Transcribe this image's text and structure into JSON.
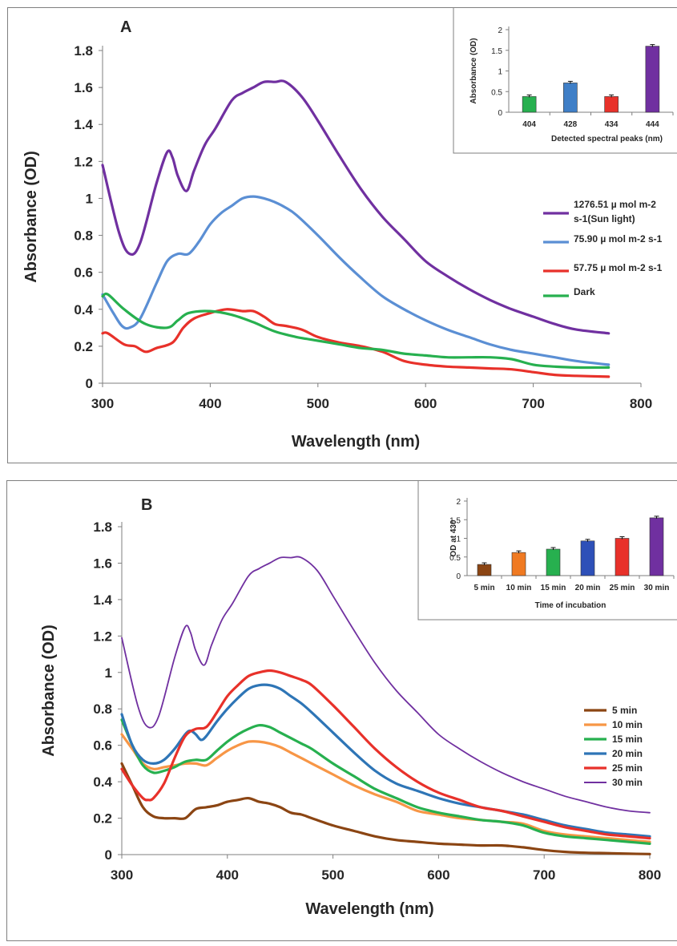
{
  "panels": [
    {
      "label": "A",
      "main": {
        "type": "line",
        "xlabel": "Wavelength (nm)",
        "ylabel": "Absorbance (OD)",
        "xlim": [
          300,
          800
        ],
        "ylim": [
          0,
          1.8
        ],
        "xticks": [
          "300",
          "400",
          "500",
          "600",
          "700",
          "800"
        ],
        "yticks": [
          "0",
          "0.2",
          "0.4",
          "0.6",
          "0.8",
          "1",
          "1.2",
          "1.4",
          "1.6",
          "1.8"
        ],
        "grid": false,
        "legend_position": "right",
        "series": [
          {
            "name": "1276.51 µ mol m-2 s-1(Sun light)",
            "color": "#7030a0",
            "x": [
              300,
              315,
              325,
              335,
              350,
              360,
              365,
              370,
              378,
              385,
              395,
              405,
              420,
              430,
              440,
              450,
              460,
              470,
              485,
              500,
              520,
              540,
              560,
              580,
              600,
              620,
              640,
              660,
              680,
              700,
              720,
              740,
              770
            ],
            "y": [
              1.18,
              0.82,
              0.7,
              0.76,
              1.08,
              1.25,
              1.22,
              1.12,
              1.04,
              1.15,
              1.29,
              1.38,
              1.53,
              1.57,
              1.6,
              1.63,
              1.63,
              1.63,
              1.55,
              1.42,
              1.23,
              1.05,
              0.9,
              0.78,
              0.66,
              0.58,
              0.51,
              0.45,
              0.4,
              0.36,
              0.32,
              0.29,
              0.27
            ]
          },
          {
            "name": "75.90 µ mol m-2 s-1",
            "color": "#5b8fd4",
            "x": [
              300,
              310,
              318,
              325,
              335,
              350,
              360,
              370,
              380,
              390,
              400,
              410,
              420,
              430,
              440,
              450,
              460,
              470,
              480,
              500,
              520,
              540,
              560,
              580,
              600,
              620,
              640,
              660,
              680,
              700,
              720,
              740,
              770
            ],
            "y": [
              0.48,
              0.38,
              0.31,
              0.3,
              0.35,
              0.54,
              0.66,
              0.7,
              0.7,
              0.77,
              0.86,
              0.92,
              0.96,
              1.0,
              1.01,
              1.0,
              0.98,
              0.95,
              0.91,
              0.8,
              0.68,
              0.57,
              0.47,
              0.4,
              0.34,
              0.29,
              0.25,
              0.21,
              0.18,
              0.16,
              0.14,
              0.12,
              0.1
            ]
          },
          {
            "name": "57.75 µ mol m-2 s-1",
            "color": "#e8312a",
            "x": [
              300,
              305,
              320,
              330,
              340,
              350,
              365,
              375,
              385,
              400,
              415,
              430,
              440,
              450,
              460,
              470,
              485,
              500,
              520,
              540,
              560,
              580,
              600,
              620,
              640,
              660,
              680,
              700,
              720,
              740,
              770
            ],
            "y": [
              0.27,
              0.27,
              0.21,
              0.2,
              0.17,
              0.19,
              0.22,
              0.3,
              0.35,
              0.38,
              0.4,
              0.39,
              0.39,
              0.36,
              0.32,
              0.31,
              0.29,
              0.25,
              0.22,
              0.2,
              0.17,
              0.12,
              0.1,
              0.09,
              0.085,
              0.08,
              0.075,
              0.06,
              0.045,
              0.04,
              0.035
            ]
          },
          {
            "name": "Dark",
            "color": "#27b04f",
            "x": [
              300,
              305,
              320,
              340,
              360,
              370,
              380,
              400,
              420,
              440,
              460,
              480,
              500,
              520,
              540,
              560,
              580,
              600,
              620,
              640,
              660,
              680,
              700,
              720,
              740,
              770
            ],
            "y": [
              0.47,
              0.48,
              0.4,
              0.32,
              0.3,
              0.34,
              0.38,
              0.39,
              0.37,
              0.33,
              0.28,
              0.25,
              0.23,
              0.21,
              0.19,
              0.18,
              0.16,
              0.15,
              0.14,
              0.14,
              0.14,
              0.13,
              0.1,
              0.09,
              0.085,
              0.085
            ]
          }
        ]
      },
      "inset": {
        "type": "bar",
        "xlabel": "Detected spectral peaks (nm)",
        "ylabel": "Absorbance (OD)",
        "ylim": [
          0,
          2
        ],
        "yticks": [
          "0",
          "0.5",
          "1",
          "1.5",
          "2"
        ],
        "categories": [
          "404",
          "428",
          "434",
          "444"
        ],
        "values": [
          0.38,
          0.71,
          0.38,
          1.6
        ],
        "colors": [
          "#27b04f",
          "#3f7fc7",
          "#e8312a",
          "#7030a0"
        ]
      }
    },
    {
      "label": "B",
      "main": {
        "type": "line",
        "xlabel": "Wavelength (nm)",
        "ylabel": "Absorbance (OD)",
        "xlim": [
          300,
          800
        ],
        "ylim": [
          0,
          1.8
        ],
        "xticks": [
          "300",
          "400",
          "500",
          "600",
          "700",
          "800"
        ],
        "yticks": [
          "0",
          "0.2",
          "0.4",
          "0.6",
          "0.8",
          "1",
          "1.2",
          "1.4",
          "1.6",
          "1.8"
        ],
        "grid": false,
        "legend_position": "right",
        "series": [
          {
            "name": "5 min",
            "color": "#8b4513",
            "x": [
              300,
              310,
              320,
              330,
              340,
              350,
              360,
              370,
              380,
              390,
              400,
              410,
              420,
              430,
              440,
              450,
              460,
              470,
              480,
              500,
              520,
              540,
              560,
              580,
              600,
              620,
              640,
              660,
              680,
              700,
              720,
              740,
              760,
              780,
              800
            ],
            "y": [
              0.5,
              0.38,
              0.26,
              0.21,
              0.2,
              0.2,
              0.2,
              0.25,
              0.26,
              0.27,
              0.29,
              0.3,
              0.31,
              0.29,
              0.28,
              0.26,
              0.23,
              0.22,
              0.2,
              0.16,
              0.13,
              0.1,
              0.08,
              0.07,
              0.06,
              0.055,
              0.05,
              0.05,
              0.04,
              0.025,
              0.015,
              0.01,
              0.008,
              0.005,
              0.003
            ]
          },
          {
            "name": "10 min",
            "color": "#f79646",
            "x": [
              300,
              310,
              320,
              330,
              340,
              350,
              360,
              370,
              380,
              390,
              400,
              410,
              420,
              430,
              440,
              450,
              460,
              470,
              480,
              500,
              520,
              540,
              560,
              580,
              600,
              620,
              640,
              660,
              680,
              700,
              720,
              740,
              760,
              780,
              800
            ],
            "y": [
              0.66,
              0.58,
              0.5,
              0.47,
              0.48,
              0.49,
              0.5,
              0.5,
              0.49,
              0.53,
              0.57,
              0.6,
              0.62,
              0.62,
              0.61,
              0.59,
              0.56,
              0.53,
              0.5,
              0.44,
              0.38,
              0.33,
              0.29,
              0.24,
              0.22,
              0.2,
              0.19,
              0.18,
              0.17,
              0.13,
              0.11,
              0.1,
              0.09,
              0.08,
              0.07
            ]
          },
          {
            "name": "15 min",
            "color": "#27b04f",
            "x": [
              300,
              310,
              320,
              330,
              340,
              350,
              360,
              370,
              380,
              390,
              400,
              410,
              420,
              430,
              440,
              450,
              460,
              470,
              480,
              500,
              520,
              540,
              560,
              580,
              600,
              620,
              640,
              660,
              680,
              700,
              720,
              740,
              760,
              780,
              800
            ],
            "y": [
              0.74,
              0.6,
              0.49,
              0.45,
              0.46,
              0.48,
              0.51,
              0.52,
              0.52,
              0.57,
              0.62,
              0.66,
              0.69,
              0.71,
              0.7,
              0.67,
              0.64,
              0.61,
              0.58,
              0.5,
              0.43,
              0.36,
              0.31,
              0.26,
              0.23,
              0.21,
              0.19,
              0.18,
              0.16,
              0.12,
              0.1,
              0.09,
              0.08,
              0.07,
              0.06
            ]
          },
          {
            "name": "20 min",
            "color": "#2e75b6",
            "x": [
              300,
              310,
              320,
              330,
              340,
              350,
              360,
              365,
              370,
              375,
              380,
              390,
              400,
              410,
              420,
              430,
              440,
              450,
              460,
              470,
              480,
              500,
              520,
              540,
              560,
              580,
              600,
              620,
              640,
              660,
              680,
              700,
              720,
              740,
              760,
              780,
              800
            ],
            "y": [
              0.77,
              0.6,
              0.52,
              0.5,
              0.52,
              0.58,
              0.66,
              0.68,
              0.66,
              0.63,
              0.65,
              0.73,
              0.8,
              0.86,
              0.91,
              0.93,
              0.93,
              0.91,
              0.87,
              0.83,
              0.78,
              0.67,
              0.56,
              0.46,
              0.39,
              0.35,
              0.31,
              0.28,
              0.26,
              0.24,
              0.22,
              0.19,
              0.16,
              0.14,
              0.12,
              0.11,
              0.1
            ]
          },
          {
            "name": "25 min",
            "color": "#e8312a",
            "x": [
              300,
              310,
              320,
              325,
              330,
              340,
              350,
              360,
              370,
              380,
              390,
              400,
              410,
              420,
              430,
              440,
              450,
              460,
              470,
              480,
              500,
              520,
              540,
              560,
              580,
              600,
              620,
              640,
              660,
              680,
              700,
              720,
              740,
              760,
              780,
              800
            ],
            "y": [
              0.47,
              0.38,
              0.31,
              0.3,
              0.31,
              0.39,
              0.53,
              0.65,
              0.69,
              0.7,
              0.78,
              0.87,
              0.93,
              0.98,
              1.0,
              1.01,
              1.0,
              0.98,
              0.96,
              0.93,
              0.82,
              0.7,
              0.58,
              0.48,
              0.4,
              0.34,
              0.3,
              0.26,
              0.24,
              0.21,
              0.18,
              0.15,
              0.13,
              0.11,
              0.1,
              0.09
            ]
          },
          {
            "name": "30 min",
            "color": "#7030a0",
            "x": [
              300,
              315,
              325,
              335,
              350,
              360,
              365,
              370,
              378,
              385,
              395,
              405,
              420,
              430,
              440,
              450,
              460,
              470,
              485,
              500,
              520,
              540,
              560,
              580,
              600,
              620,
              640,
              660,
              680,
              700,
              720,
              740,
              760,
              780,
              800
            ],
            "y": [
              1.19,
              0.82,
              0.7,
              0.76,
              1.08,
              1.25,
              1.22,
              1.12,
              1.04,
              1.15,
              1.29,
              1.38,
              1.53,
              1.57,
              1.6,
              1.63,
              1.63,
              1.63,
              1.56,
              1.42,
              1.23,
              1.05,
              0.9,
              0.78,
              0.66,
              0.58,
              0.51,
              0.45,
              0.4,
              0.36,
              0.32,
              0.29,
              0.26,
              0.24,
              0.23
            ]
          }
        ]
      },
      "inset": {
        "type": "bar",
        "xlabel": "Time of incubation",
        "ylabel": "OD at 430",
        "ylim": [
          0,
          2
        ],
        "yticks": [
          "0",
          "0.5",
          "1",
          "1.5",
          "2"
        ],
        "categories": [
          "5 min",
          "10 min",
          "15 min",
          "20 min",
          "25 min",
          "30 min"
        ],
        "values": [
          0.3,
          0.62,
          0.71,
          0.93,
          1.0,
          1.55
        ],
        "colors": [
          "#8b4513",
          "#f07a22",
          "#27b04f",
          "#2e50b8",
          "#e8312a",
          "#7030a0"
        ]
      }
    }
  ],
  "legendA_lines": [
    [
      "1276.51 µ mol m-2",
      "s-1(Sun light)"
    ],
    [
      "75.90 µ mol m-2 s-1"
    ],
    [
      "57.75 µ mol m-2 s-1"
    ],
    [
      "Dark"
    ]
  ]
}
